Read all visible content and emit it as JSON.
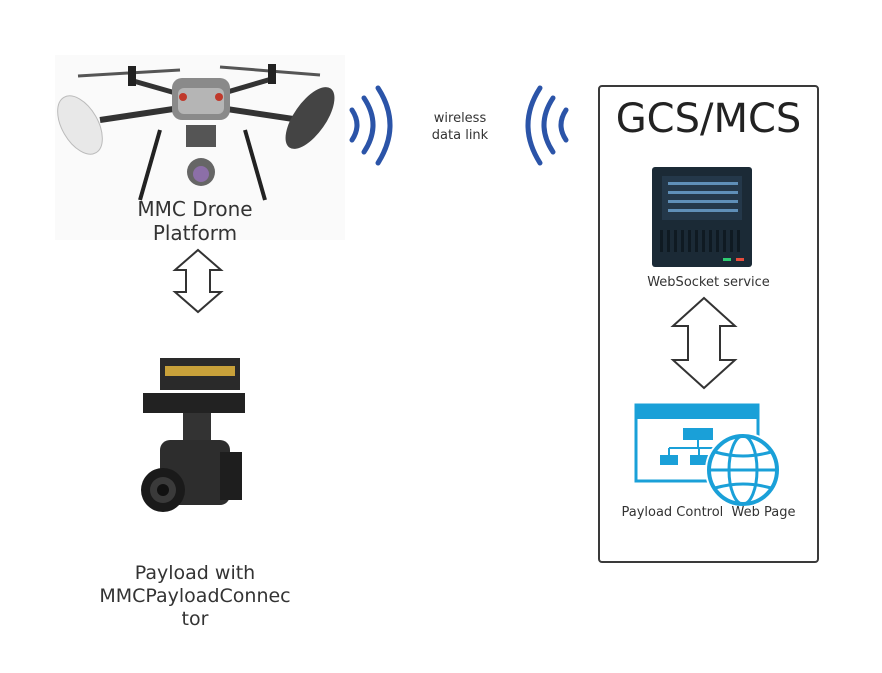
{
  "drone": {
    "label_line1": "MMC Drone",
    "label_line2": "Platform"
  },
  "payload": {
    "label_line1": "Payload with",
    "label_line2": "MMCPayloadConnec",
    "label_line3": "tor"
  },
  "link": {
    "label_line1": "wireless",
    "label_line2": "data link"
  },
  "gcs": {
    "title": "GCS/MCS",
    "websocket_label": "WebSocket service",
    "webpage_label": "Payload Control  Web Page"
  },
  "colors": {
    "signal": "#2b54a8",
    "accent_blue": "#1aa0d8",
    "server_dark": "#1b2a36",
    "border": "#3a3a3a"
  }
}
